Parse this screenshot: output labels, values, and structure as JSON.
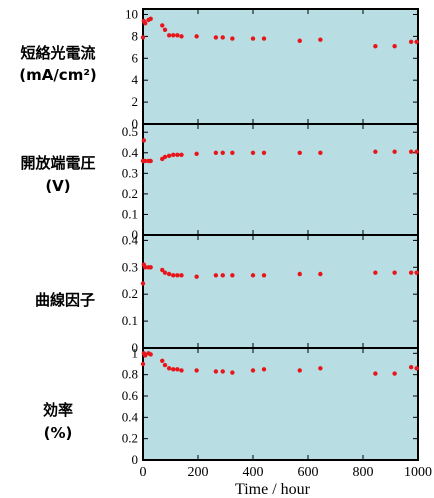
{
  "chart_data": [
    {
      "type": "scatter",
      "ylabel_lines": [
        "短絡光電流",
        "(mA/cm²)"
      ],
      "ylim": [
        0,
        10.5
      ],
      "yticks": [
        0,
        2,
        4,
        6,
        8,
        10
      ],
      "ytick_labels": [
        "0",
        "2",
        "4",
        "6",
        "8",
        "10"
      ],
      "color": "#e8161b",
      "x": [
        0,
        3,
        8,
        20,
        28,
        70,
        80,
        95,
        110,
        125,
        140,
        195,
        265,
        290,
        325,
        400,
        440,
        570,
        645,
        845,
        915,
        975,
        995
      ],
      "y": [
        7.9,
        9.4,
        9.2,
        9.5,
        9.6,
        9.0,
        8.6,
        8.1,
        8.1,
        8.1,
        8.0,
        8.0,
        7.9,
        7.9,
        7.8,
        7.8,
        7.8,
        7.6,
        7.7,
        7.1,
        7.1,
        7.5,
        7.5
      ]
    },
    {
      "type": "scatter",
      "ylabel_lines": [
        "開放端電圧",
        "(V)"
      ],
      "ylim": [
        0,
        0.54
      ],
      "yticks": [
        0,
        0.1,
        0.2,
        0.3,
        0.4,
        0.5
      ],
      "ytick_labels": [
        "0",
        "0.1",
        "0.2",
        "0.3",
        "0.4",
        "0.5"
      ],
      "color": "#e8161b",
      "x": [
        0,
        3,
        8,
        20,
        28,
        70,
        80,
        95,
        110,
        125,
        140,
        195,
        265,
        290,
        325,
        400,
        440,
        570,
        645,
        845,
        915,
        975,
        995
      ],
      "y": [
        0.36,
        0.46,
        0.36,
        0.36,
        0.36,
        0.37,
        0.38,
        0.385,
        0.39,
        0.39,
        0.39,
        0.395,
        0.4,
        0.4,
        0.4,
        0.4,
        0.4,
        0.4,
        0.4,
        0.405,
        0.405,
        0.405,
        0.405
      ]
    },
    {
      "type": "scatter",
      "ylabel_lines": [
        "曲線因子"
      ],
      "ylim": [
        0,
        0.42
      ],
      "yticks": [
        0,
        0.1,
        0.2,
        0.3,
        0.4
      ],
      "ytick_labels": [
        "0",
        "0.1",
        "0.2",
        "0.3",
        "0.4"
      ],
      "color": "#e8161b",
      "x": [
        0,
        3,
        8,
        20,
        28,
        70,
        80,
        95,
        110,
        125,
        140,
        195,
        265,
        290,
        325,
        400,
        440,
        570,
        645,
        845,
        915,
        975,
        995
      ],
      "y": [
        0.24,
        0.31,
        0.3,
        0.3,
        0.3,
        0.29,
        0.28,
        0.275,
        0.27,
        0.27,
        0.27,
        0.265,
        0.27,
        0.27,
        0.27,
        0.27,
        0.27,
        0.275,
        0.275,
        0.28,
        0.28,
        0.28,
        0.28
      ]
    },
    {
      "type": "scatter",
      "ylabel_lines": [
        "効率",
        "(%)"
      ],
      "ylim": [
        0,
        1.05
      ],
      "yticks": [
        0,
        0.2,
        0.4,
        0.6,
        0.8,
        1
      ],
      "ytick_labels": [
        "0",
        "0.2",
        "0.4",
        "0.6",
        "0.8",
        "1"
      ],
      "color": "#e8161b",
      "x": [
        0,
        3,
        8,
        20,
        28,
        70,
        80,
        95,
        110,
        125,
        140,
        195,
        265,
        290,
        325,
        400,
        440,
        570,
        645,
        845,
        915,
        975,
        995
      ],
      "y": [
        0.9,
        1.0,
        0.98,
        1.0,
        0.99,
        0.93,
        0.89,
        0.86,
        0.85,
        0.85,
        0.84,
        0.84,
        0.83,
        0.83,
        0.82,
        0.84,
        0.85,
        0.84,
        0.86,
        0.81,
        0.81,
        0.87,
        0.86
      ]
    }
  ],
  "x_axis": {
    "xlim": [
      0,
      1000
    ],
    "xticks": [
      0,
      200,
      400,
      600,
      800,
      1000
    ],
    "xtick_labels": [
      "0",
      "200",
      "400",
      "600",
      "800",
      "1000"
    ],
    "xlabel": "Time / hour"
  }
}
